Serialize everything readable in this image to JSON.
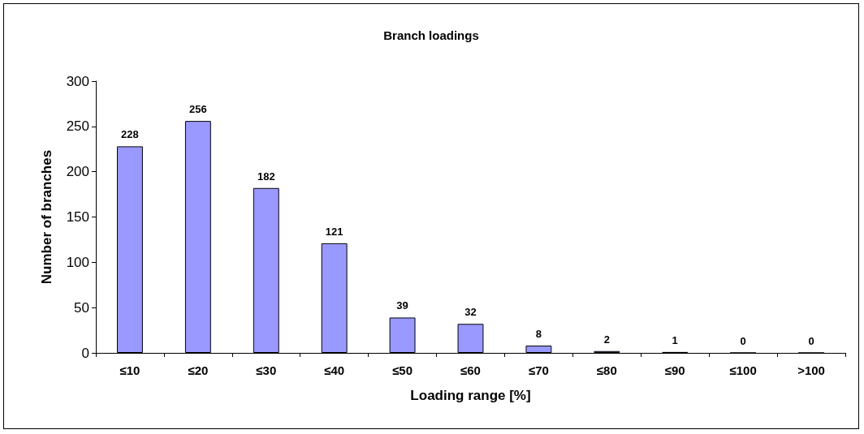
{
  "chart_data": {
    "type": "bar",
    "title": "Branch loadings",
    "xlabel": "Loading range [%]",
    "ylabel": "Number of branches",
    "categories": [
      "≤10",
      "≤20",
      "≤30",
      "≤40",
      "≤50",
      "≤60",
      "≤70",
      "≤80",
      "≤90",
      "≤100",
      ">100"
    ],
    "values": [
      228,
      256,
      182,
      121,
      39,
      32,
      8,
      2,
      1,
      0,
      0
    ],
    "color": "#9999ff",
    "ylim": [
      0,
      300
    ],
    "yticks": [
      0,
      50,
      100,
      150,
      200,
      250,
      300
    ],
    "data_labels": true
  }
}
